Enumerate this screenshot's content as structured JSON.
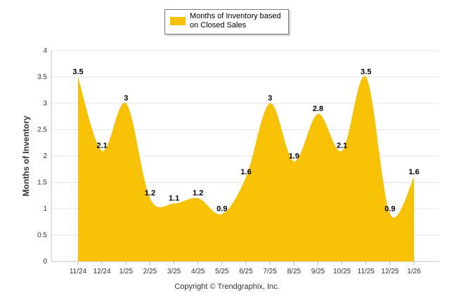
{
  "chart_data": {
    "type": "area",
    "categories": [
      "11/24",
      "12/24",
      "1/25",
      "2/25",
      "3/25",
      "4/25",
      "5/25",
      "6/25",
      "7/25",
      "8/25",
      "9/25",
      "10/25",
      "11/25",
      "12/25",
      "1/26"
    ],
    "series": [
      {
        "name": "Months of Inventory based on Closed Sales",
        "values": [
          3.5,
          2.1,
          3,
          1.2,
          1.1,
          1.2,
          0.9,
          1.6,
          3,
          1.9,
          2.8,
          2.1,
          3.5,
          0.9,
          1.6
        ]
      }
    ],
    "data_labels": [
      "3.5",
      "2.1",
      "3",
      "1.2",
      "1.1",
      "1.2",
      "0.9",
      "1.6",
      "3",
      "1.9",
      "2.8",
      "2.1",
      "3.5",
      "0.9",
      "1.6"
    ],
    "ylabel": "Months of Inventory",
    "xlabel": "",
    "ylim": [
      0,
      4
    ],
    "y_ticks": [
      "0",
      "0.5",
      "1",
      "1.5",
      "2",
      "2.5",
      "3",
      "3.5",
      "4"
    ],
    "grid": true,
    "legend": "top-center",
    "color": "#f7c106"
  },
  "footer": {
    "copyright": "Copyright © Trendgraphix, Inc."
  }
}
